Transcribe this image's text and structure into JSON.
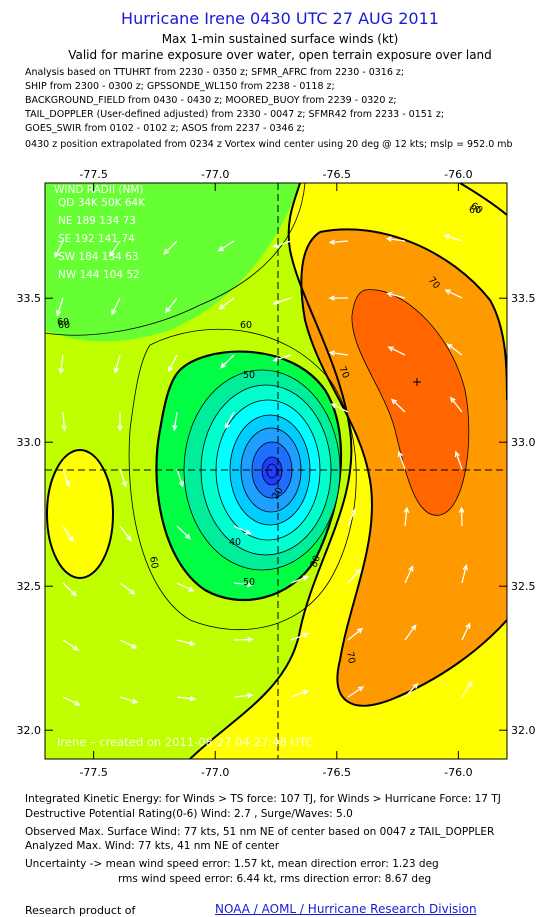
{
  "header": {
    "title": "Hurricane Irene 0430 UTC 27 AUG 2011",
    "subtitle": "Max 1-min sustained surface winds (kt)",
    "validity": "Valid for marine exposure over water, open terrain exposure over land"
  },
  "analysis_lines": [
    "Analysis based on TTUHRT from 2230 - 0350 z; SFMR_AFRC from 2230 - 0316 z;",
    "SHIP from 2300 - 0300 z; GPSSONDE_WL150 from 2238 - 0118 z;",
    "BACKGROUND_FIELD from 0430 - 0430 z; MOORED_BUOY from 2239 - 0320 z;",
    "TAIL_DOPPLER (User-defined adjusted) from 2330 - 0047 z; SFMR42 from 2233 - 0151 z;",
    "GOES_SWIR from 0102 - 0102 z; ASOS from 2237 - 0346 z;",
    "0430 z position extrapolated from 0234 z Vortex wind center using 20 deg @ 12 kts; mslp = 952.0 mb"
  ],
  "wind_radii": {
    "title": "WIND RADII (NM)",
    "header": "QD 34K 50K 64K",
    "rows": [
      "NE 189 134  73",
      "SE 192 141  74",
      "SW 184 134  63",
      "NW 144 104  52"
    ]
  },
  "watermark": "Irene – created on 2011-08-27 04:27:48 UTC",
  "footer": {
    "ike": "Integrated Kinetic Energy:  for Winds > TS force: 107 TJ,  for Winds > Hurricane Force: 17 TJ",
    "dpr": "Destructive Potential Rating(0-6)   Wind: 2.7 , Surge/Waves: 5.0",
    "obs_max": "Observed Max. Surface Wind: 77 kts, 51 nm NE of center based on 0047 z TAIL_DOPPLER",
    "ana_max": "Analyzed Max. Wind: 77 kts, 41 nm NE of center",
    "uncert1": "Uncertainty -> mean wind speed error: 1.57 kt,   mean direction error: 1.23 deg",
    "uncert2": "rms wind speed error: 6.44 kt,   rms direction error: 8.67 deg",
    "research": "Research product of",
    "org": "NOAA / AOML / Hurricane Research Division"
  },
  "colors": {
    "title": "#1a1ad6",
    "bg_field": "#bfff00",
    "band_60": "#ffff00",
    "band_70": "#ff9900",
    "band_75": "#ff6600",
    "center": "#1f9fff"
  },
  "chart_data": {
    "type": "heatmap",
    "title": "Hurricane Irene 0430 UTC 27 AUG 2011",
    "x_ticks": [
      "-77.5",
      "-77.0",
      "-76.5",
      "-76.0"
    ],
    "x_tick_values": [
      -77.5,
      -77.0,
      -76.5,
      -76.0
    ],
    "y_ticks": [
      "33.5",
      "33.0",
      "32.5",
      "32.0"
    ],
    "y_tick_values": [
      33.5,
      33.0,
      32.5,
      32.0
    ],
    "xlim": [
      -77.7,
      -75.8
    ],
    "ylim": [
      31.9,
      33.9
    ],
    "center": {
      "lon": -76.7,
      "lat": 32.9
    },
    "max_wind_marker": {
      "lon": -76.1,
      "lat": 33.2
    },
    "contour_levels": [
      20,
      30,
      40,
      50,
      60,
      70
    ],
    "contour_labels": [
      "60",
      "60",
      "60",
      "60",
      "70",
      "70",
      "70",
      "80",
      "50",
      "40",
      "20",
      "60",
      "50",
      "60"
    ],
    "legend": "wind radii table top-left"
  }
}
